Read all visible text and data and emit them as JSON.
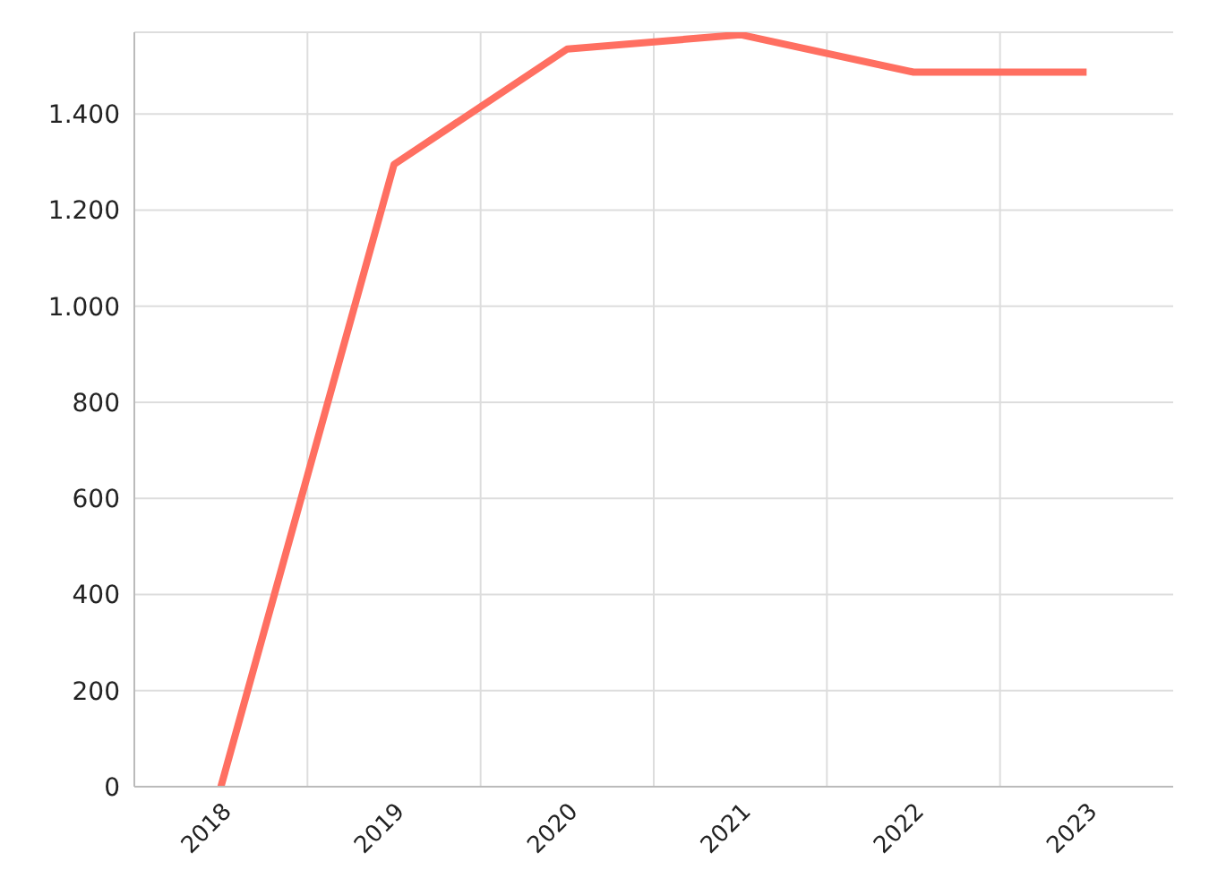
{
  "chart_data": {
    "type": "line",
    "categories": [
      "2018",
      "2019",
      "2020",
      "2021",
      "2022",
      "2023"
    ],
    "series": [
      {
        "color": "#ff6f61",
        "values": [
          0,
          1295,
          1535,
          1565,
          1487,
          1487
        ]
      }
    ],
    "ylim": [
      0,
      1570
    ],
    "yticks": [
      0,
      200,
      400,
      600,
      800,
      {
        "value": 1000,
        "label": "1.000"
      },
      {
        "value": 1200,
        "label": "1.200"
      },
      {
        "value": 1400,
        "label": "1.400"
      }
    ],
    "grid": true,
    "marker": "none",
    "line_style": "solid"
  }
}
